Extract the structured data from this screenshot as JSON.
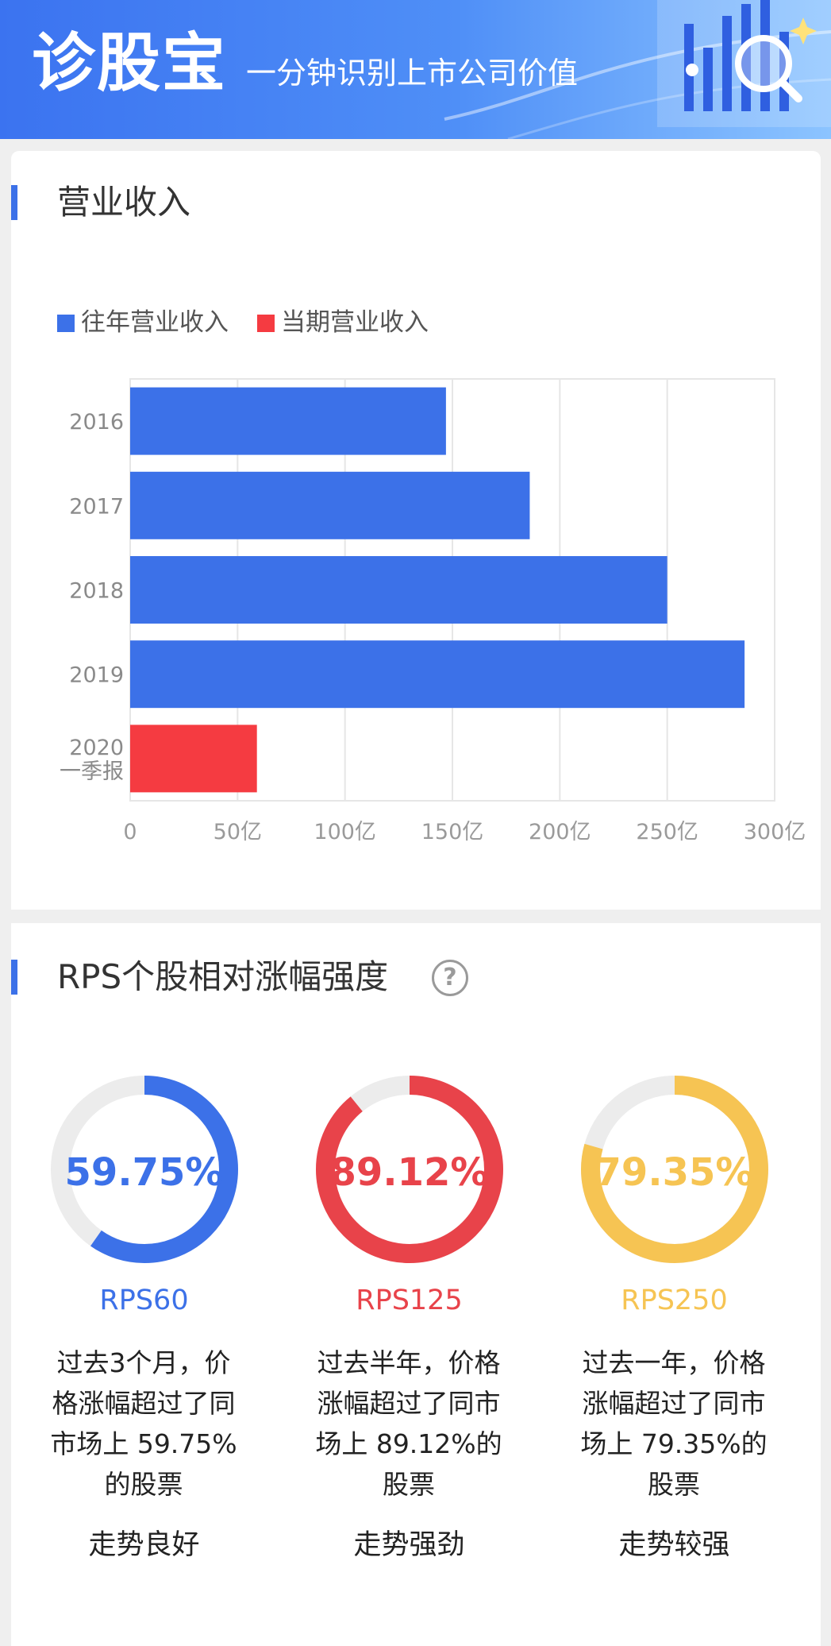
{
  "header": {
    "logo": "诊股宝",
    "slogan": "一分钟识别上市公司价值"
  },
  "revenue": {
    "title": "营业收入",
    "legend": [
      {
        "label": "往年营业收入",
        "color": "#3c71e8"
      },
      {
        "label": "当期营业收入",
        "color": "#f53b41"
      }
    ]
  },
  "chart_data": {
    "type": "bar",
    "orientation": "horizontal",
    "categories": [
      "2016",
      "2017",
      "2018",
      "2019",
      "2020\n一季报"
    ],
    "series": [
      {
        "name": "往年营业收入",
        "color": "#3c71e8",
        "values": [
          147,
          186,
          250,
          286,
          null
        ]
      },
      {
        "name": "当期营业收入",
        "color": "#f53b41",
        "values": [
          null,
          null,
          null,
          null,
          59
        ]
      }
    ],
    "xticks": [
      "0",
      "50亿",
      "100亿",
      "150亿",
      "200亿",
      "250亿",
      "300亿"
    ],
    "xlim": [
      0,
      300
    ],
    "grid": true,
    "legend_position": "top-left"
  },
  "rps": {
    "title": "RPS个股相对涨幅强度",
    "help_icon": "question-circle-icon",
    "help_glyph": "?",
    "items": [
      {
        "percent": "59.75%",
        "value": 59.75,
        "name": "RPS60",
        "color": "#3c71e8",
        "description": "过去3个月，价格涨幅超过了同市场上 59.75%的股票",
        "trend": "走势良好"
      },
      {
        "percent": "89.12%",
        "value": 89.12,
        "name": "RPS125",
        "color": "#e8434a",
        "description": "过去半年，价格涨幅超过了同市场上 89.12%的股票",
        "trend": "走势强劲"
      },
      {
        "percent": "79.35%",
        "value": 79.35,
        "name": "RPS250",
        "color": "#f6c453",
        "description": "过去一年，价格涨幅超过了同市场上 79.35%的股票",
        "trend": "走势较强"
      }
    ]
  }
}
